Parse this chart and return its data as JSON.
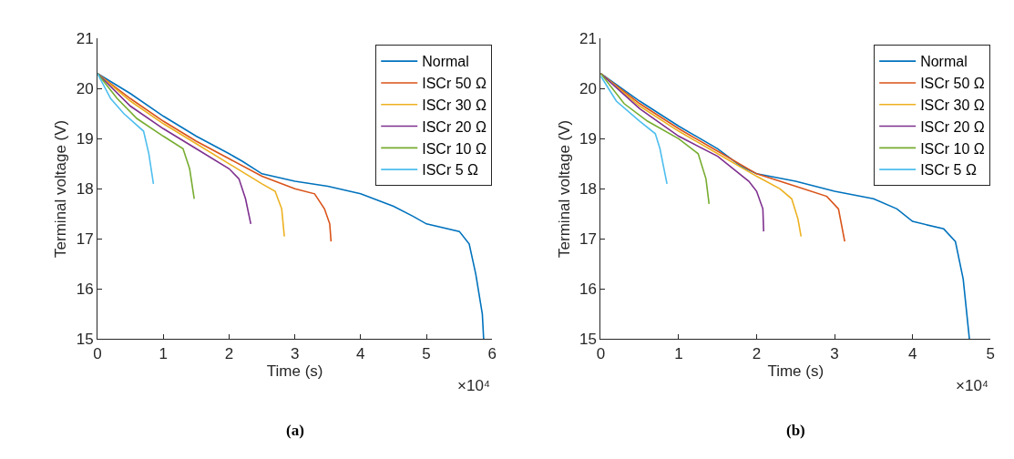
{
  "chart_data": [
    {
      "type": "line",
      "xlabel": "Time (s)",
      "ylabel": "Terminal voltage (V)",
      "legend": "top right",
      "xlim": [
        0,
        6
      ],
      "xticks": [
        0,
        1,
        2,
        3,
        4,
        5,
        6
      ],
      "ylim": [
        15,
        21
      ],
      "yticks": [
        15,
        16,
        17,
        18,
        19,
        20,
        21
      ],
      "annotations": [
        "×10⁴",
        "(a)"
      ],
      "series": [
        {
          "name": "Normal",
          "color": "#0072bd",
          "x": [
            0,
            0.5,
            1.0,
            1.5,
            2.0,
            2.2,
            2.5,
            3.0,
            3.5,
            4.0,
            4.5,
            4.8,
            5.0,
            5.5,
            5.65,
            5.75,
            5.85,
            5.87
          ],
          "values": [
            20.3,
            19.9,
            19.45,
            19.05,
            18.7,
            18.55,
            18.3,
            18.15,
            18.05,
            17.9,
            17.65,
            17.45,
            17.3,
            17.15,
            16.9,
            16.3,
            15.5,
            15.0
          ]
        },
        {
          "name": "ISCr 50 Ω",
          "color": "#d95319",
          "x": [
            0,
            0.5,
            1.0,
            1.5,
            2.0,
            2.5,
            3.0,
            3.3,
            3.45,
            3.53,
            3.55
          ],
          "values": [
            20.3,
            19.8,
            19.35,
            18.95,
            18.6,
            18.25,
            18.0,
            17.9,
            17.6,
            17.3,
            16.95
          ]
        },
        {
          "name": "ISCr 30 Ω",
          "color": "#edb120",
          "x": [
            0,
            0.5,
            1.0,
            1.5,
            2.0,
            2.5,
            2.7,
            2.8,
            2.84
          ],
          "values": [
            20.3,
            19.75,
            19.3,
            18.9,
            18.5,
            18.1,
            17.95,
            17.6,
            17.05
          ]
        },
        {
          "name": "ISCr 20 Ω",
          "color": "#7e2f8e",
          "x": [
            0,
            0.5,
            1.0,
            1.5,
            2.0,
            2.15,
            2.25,
            2.33
          ],
          "values": [
            20.3,
            19.65,
            19.2,
            18.8,
            18.4,
            18.2,
            17.8,
            17.3
          ]
        },
        {
          "name": "ISCr 10 Ω",
          "color": "#77ac30",
          "x": [
            0,
            0.3,
            0.6,
            1.0,
            1.3,
            1.4,
            1.47
          ],
          "values": [
            20.3,
            19.8,
            19.4,
            19.05,
            18.8,
            18.4,
            17.8
          ]
        },
        {
          "name": "ISCr 5 Ω",
          "color": "#4dbeee",
          "x": [
            0,
            0.2,
            0.4,
            0.7,
            0.78,
            0.85
          ],
          "values": [
            20.3,
            19.8,
            19.5,
            19.15,
            18.7,
            18.1
          ]
        }
      ]
    },
    {
      "type": "line",
      "xlabel": "Time (s)",
      "ylabel": "Terminal voltage (V)",
      "legend": "top right",
      "xlim": [
        0,
        5
      ],
      "xticks": [
        0,
        1,
        2,
        3,
        4,
        5
      ],
      "ylim": [
        15,
        21
      ],
      "yticks": [
        15,
        16,
        17,
        18,
        19,
        20,
        21
      ],
      "annotations": [
        "×10⁴",
        "(b)"
      ],
      "series": [
        {
          "name": "Normal",
          "color": "#0072bd",
          "x": [
            0,
            0.5,
            1.0,
            1.5,
            1.8,
            2.0,
            2.5,
            3.0,
            3.5,
            3.8,
            4.0,
            4.4,
            4.55,
            4.65,
            4.73
          ],
          "values": [
            20.3,
            19.75,
            19.25,
            18.8,
            18.45,
            18.3,
            18.15,
            17.95,
            17.8,
            17.6,
            17.35,
            17.2,
            16.95,
            16.2,
            15.0
          ]
        },
        {
          "name": "ISCr 50 Ω",
          "color": "#d95319",
          "x": [
            0,
            0.5,
            1.0,
            1.5,
            2.0,
            2.5,
            2.9,
            3.05,
            3.13
          ],
          "values": [
            20.3,
            19.7,
            19.2,
            18.75,
            18.3,
            18.05,
            17.85,
            17.6,
            16.95
          ]
        },
        {
          "name": "ISCr 30 Ω",
          "color": "#edb120",
          "x": [
            0,
            0.5,
            1.0,
            1.5,
            2.0,
            2.3,
            2.45,
            2.53,
            2.57
          ],
          "values": [
            20.3,
            19.65,
            19.15,
            18.7,
            18.25,
            18.0,
            17.8,
            17.4,
            17.05
          ]
        },
        {
          "name": "ISCr 20 Ω",
          "color": "#7e2f8e",
          "x": [
            0,
            0.5,
            1.0,
            1.5,
            1.9,
            2.0,
            2.08,
            2.09
          ],
          "values": [
            20.3,
            19.6,
            19.05,
            18.65,
            18.15,
            17.95,
            17.6,
            17.15
          ]
        },
        {
          "name": "ISCr 10 Ω",
          "color": "#77ac30",
          "x": [
            0,
            0.3,
            0.6,
            1.0,
            1.25,
            1.35,
            1.39
          ],
          "values": [
            20.3,
            19.7,
            19.35,
            19.0,
            18.7,
            18.2,
            17.7
          ]
        },
        {
          "name": "ISCr 5 Ω",
          "color": "#4dbeee",
          "x": [
            0,
            0.2,
            0.5,
            0.7,
            0.76,
            0.85
          ],
          "values": [
            20.25,
            19.75,
            19.35,
            19.1,
            18.8,
            18.1
          ]
        }
      ]
    }
  ]
}
